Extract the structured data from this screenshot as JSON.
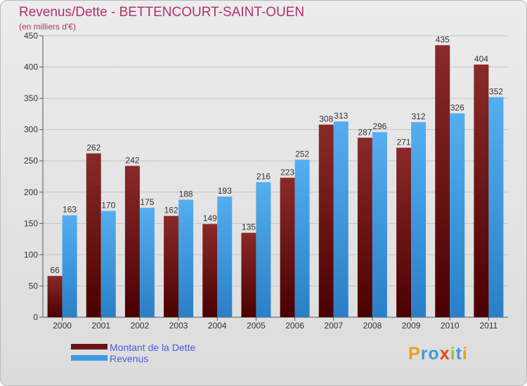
{
  "header": {
    "title": "Revenus/Dette - BETTENCOURT-SAINT-OUEN",
    "subtitle": "(en milliers d'€)"
  },
  "chart_data": {
    "type": "bar",
    "title": "Revenus/Dette - BETTENCOURT-SAINT-OUEN",
    "subtitle": "(en milliers d'€)",
    "categories": [
      "2000",
      "2001",
      "2002",
      "2003",
      "2004",
      "2005",
      "2006",
      "2007",
      "2008",
      "2009",
      "2010",
      "2011"
    ],
    "series": [
      {
        "name": "Montant de la Dette",
        "color": "#7a1a1a",
        "values": [
          66,
          262,
          242,
          162,
          149,
          135,
          223,
          308,
          287,
          271,
          435,
          404
        ]
      },
      {
        "name": "Revenus",
        "color": "#4aa3e8",
        "values": [
          163,
          170,
          175,
          188,
          193,
          216,
          252,
          313,
          296,
          312,
          326,
          352
        ]
      }
    ],
    "ylim": [
      0,
      450
    ],
    "yticks": [
      0,
      50,
      100,
      150,
      200,
      250,
      300,
      350,
      400,
      450
    ],
    "grid": true,
    "legend_position": "bottom-left"
  },
  "legend": {
    "items": [
      {
        "label": "Montant de la Dette",
        "color": "#6b1414"
      },
      {
        "label": "Revenus",
        "color": "#3f9ae0"
      }
    ]
  },
  "logo": {
    "letters": [
      "P",
      "r",
      "o",
      "x",
      "i",
      "t",
      "i"
    ],
    "colors": [
      "#e8a21a",
      "#3f9ae0",
      "#3f9ae0",
      "#e04a1a",
      "#8bc53f",
      "#3f9ae0",
      "#e8a21a"
    ],
    "text": "Proxiti"
  }
}
